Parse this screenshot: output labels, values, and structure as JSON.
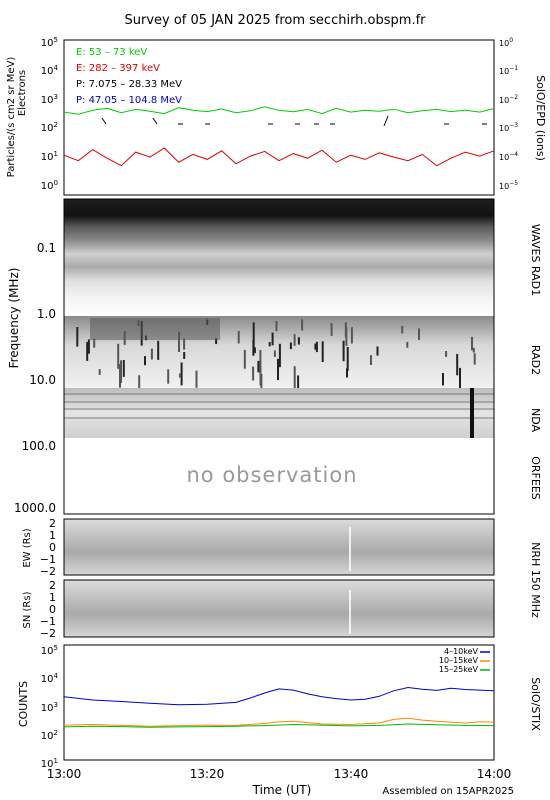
{
  "title": "Survey of 05 JAN 2025 from secchirh.obspm.fr",
  "footer": "Assembled on 15APR2025",
  "time_axis": {
    "label": "Time (UT)",
    "ticks": [
      "13:00",
      "13:20",
      "13:40",
      "14:00"
    ],
    "start_min": 0,
    "end_min": 60
  },
  "panels": {
    "epd": {
      "left_label_1": "Particles/(s cm2 sr MeV)",
      "left_label_2": "Electrons",
      "right_label": "SolO/EPD (ions)",
      "left_ticks": [
        "10^0",
        "10^1",
        "10^2",
        "10^3",
        "10^4",
        "10^5"
      ],
      "right_ticks": [
        "10^-5",
        "10^-4",
        "10^-3",
        "10^-2",
        "10^-1",
        "10^0"
      ],
      "legend": [
        {
          "text": "E: 53 – 73 keV",
          "color": "#00cc00"
        },
        {
          "text": "E: 282 – 397 keV",
          "color": "#dd0000"
        },
        {
          "text": "P: 7.075 – 28.33 MeV",
          "color": "#000000"
        },
        {
          "text": "P: 47.05 – 104.8 MeV",
          "color": "#0000cc"
        }
      ]
    },
    "radio": {
      "ylabel": "Frequency (MHz)",
      "ticks": [
        "0.1",
        "1.0",
        "10.0",
        "100.0",
        "1000.0"
      ],
      "right_labels": [
        "WAVES RAD1",
        "RAD2",
        "NDA",
        "ORFEES"
      ],
      "no_obs": "no observation"
    },
    "nrh": {
      "ew_label": "EW (Rs)",
      "sn_label": "SN (Rs)",
      "ticks": [
        "2",
        "1",
        "0",
        "−1",
        "−2"
      ],
      "right_label": "NRH 150 MHz"
    },
    "stix": {
      "ylabel": "COUNTS",
      "right_label": "SolO/STIX",
      "ticks": [
        "10^1",
        "10^2",
        "10^3",
        "10^4",
        "10^5"
      ],
      "legend": [
        {
          "text": "4–10keV",
          "color": "#0000cc"
        },
        {
          "text": "10–15keV",
          "color": "#ff8800"
        },
        {
          "text": "15–25keV",
          "color": "#00bb00"
        }
      ]
    }
  },
  "chart_data": [
    {
      "type": "line",
      "title": "SolO/EPD",
      "xlabel": "",
      "ylabel": "Particles/(s cm2 sr MeV) Electrons",
      "x_range_min": [
        0,
        60
      ],
      "ylim_log10": [
        0,
        5
      ],
      "series": [
        {
          "name": "E: 53 – 73 keV",
          "color": "#00cc00",
          "x": [
            0,
            2,
            4,
            6,
            8,
            10,
            12,
            14,
            16,
            18,
            20,
            22,
            24,
            26,
            28,
            30,
            32,
            34,
            36,
            38,
            40,
            42,
            44,
            46,
            48,
            50,
            52,
            54,
            56,
            58,
            60
          ],
          "values": [
            450,
            380,
            520,
            610,
            430,
            560,
            480,
            400,
            640,
            520,
            470,
            580,
            430,
            500,
            690,
            520,
            460,
            560,
            400,
            610,
            450,
            520,
            480,
            570,
            430,
            500,
            560,
            470,
            530,
            450,
            600
          ]
        },
        {
          "name": "E: 282 – 397 keV",
          "color": "#dd0000",
          "x": [
            0,
            2,
            4,
            6,
            8,
            10,
            12,
            14,
            16,
            18,
            20,
            22,
            24,
            26,
            28,
            30,
            32,
            34,
            36,
            38,
            40,
            42,
            44,
            46,
            48,
            50,
            52,
            54,
            56,
            58,
            60
          ],
          "values": [
            14,
            9,
            22,
            11,
            6,
            18,
            12,
            25,
            8,
            15,
            10,
            20,
            7,
            13,
            19,
            9,
            16,
            11,
            21,
            8,
            14,
            10,
            17,
            12,
            9,
            15,
            6,
            11,
            18,
            13,
            20
          ]
        }
      ]
    },
    {
      "type": "line",
      "title": "SolO/STIX",
      "xlabel": "Time (UT)",
      "ylabel": "COUNTS",
      "x_range_min": [
        0,
        60
      ],
      "ylim_log10": [
        1,
        5
      ],
      "series": [
        {
          "name": "4–10keV",
          "color": "#0000cc",
          "x": [
            0,
            4,
            8,
            12,
            16,
            20,
            24,
            26,
            28,
            30,
            32,
            34,
            36,
            38,
            40,
            42,
            44,
            46,
            48,
            50,
            52,
            54,
            56,
            58,
            60
          ],
          "values": [
            2200,
            1700,
            1500,
            1300,
            1150,
            1200,
            1400,
            2000,
            3000,
            4200,
            3800,
            2800,
            2200,
            1900,
            1700,
            1800,
            2300,
            3600,
            4700,
            4100,
            3700,
            4400,
            4000,
            3800,
            3600
          ]
        },
        {
          "name": "10–15keV",
          "color": "#ff8800",
          "x": [
            0,
            4,
            8,
            12,
            16,
            20,
            24,
            28,
            30,
            32,
            34,
            36,
            40,
            44,
            46,
            48,
            50,
            52,
            56,
            58,
            60
          ],
          "values": [
            220,
            230,
            215,
            200,
            210,
            220,
            215,
            250,
            290,
            300,
            270,
            240,
            230,
            260,
            350,
            390,
            330,
            300,
            260,
            290,
            280
          ]
        },
        {
          "name": "15–25keV",
          "color": "#00bb00",
          "x": [
            0,
            4,
            8,
            12,
            16,
            20,
            24,
            28,
            32,
            36,
            40,
            44,
            48,
            52,
            56,
            60
          ],
          "values": [
            190,
            200,
            195,
            185,
            190,
            195,
            200,
            210,
            230,
            220,
            205,
            215,
            240,
            225,
            215,
            210
          ]
        }
      ]
    }
  ]
}
